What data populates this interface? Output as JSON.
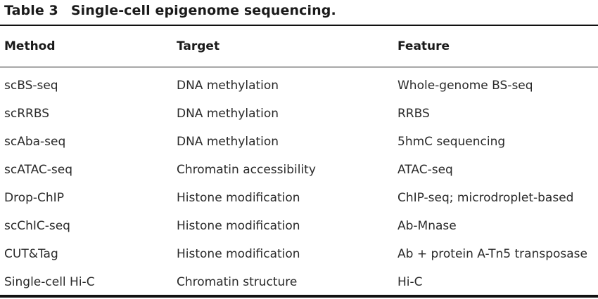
{
  "caption": {
    "label": "Table 3",
    "title": "Single-cell epigenome sequencing."
  },
  "headers": [
    "Method",
    "Target",
    "Feature"
  ],
  "rows": [
    [
      "scBS-seq",
      "DNA methylation",
      "Whole-genome BS-seq"
    ],
    [
      "scRRBS",
      "DNA methylation",
      "RRBS"
    ],
    [
      "scAba-seq",
      "DNA methylation",
      "5hmC sequencing"
    ],
    [
      "scATAC-seq",
      "Chromatin accessibility",
      "ATAC-seq"
    ],
    [
      "Drop-ChIP",
      "Histone modification",
      "ChIP-seq; microdroplet-based"
    ],
    [
      "scChIC-seq",
      "Histone modification",
      "Ab-Mnase"
    ],
    [
      "CUT&Tag",
      "Histone modification",
      "Ab + protein A-Tn5 transposase"
    ],
    [
      "Single-cell Hi-C",
      "Chromatin structure",
      "Hi-C"
    ]
  ]
}
